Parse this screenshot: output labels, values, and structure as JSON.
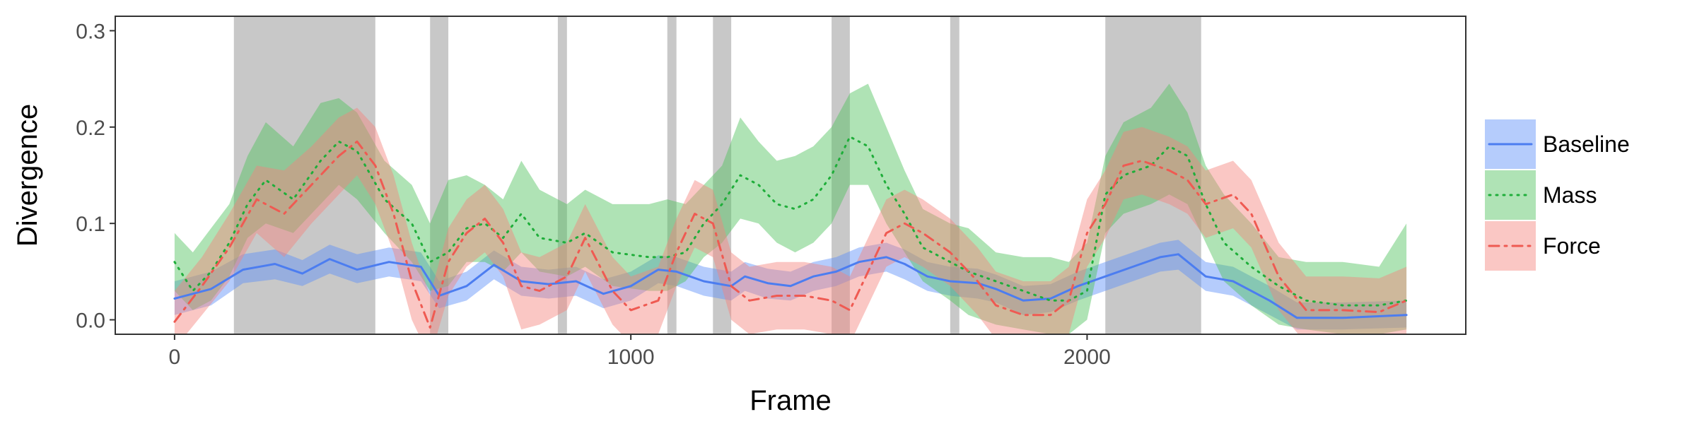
{
  "chart_data": {
    "type": "line",
    "title": "",
    "xlabel": "Frame",
    "ylabel": "Divergence",
    "xlim": [
      -130,
      2830
    ],
    "ylim": [
      -0.015,
      0.315
    ],
    "xticks": [
      0,
      1000,
      2000
    ],
    "xtick_labels": [
      "0",
      "1000",
      "2000"
    ],
    "yticks": [
      0.0,
      0.1,
      0.2,
      0.3
    ],
    "ytick_labels": [
      "0.0",
      "0.1",
      "0.2",
      "0.3"
    ],
    "grid": false,
    "legend_position": "right",
    "shaded_regions": [
      [
        130,
        440
      ],
      [
        560,
        600
      ],
      [
        840,
        860
      ],
      [
        1080,
        1100
      ],
      [
        1180,
        1220
      ],
      [
        1440,
        1480
      ],
      [
        1700,
        1720
      ],
      [
        2040,
        2250
      ]
    ],
    "shade_color": "#c8c8c8",
    "series": [
      {
        "name": "Baseline",
        "color": "#5b8ff9",
        "line_color": "#4c7df0",
        "style": "solid",
        "x": [
          0,
          80,
          150,
          220,
          280,
          340,
          400,
          470,
          540,
          580,
          640,
          700,
          760,
          820,
          880,
          940,
          1000,
          1060,
          1100,
          1160,
          1220,
          1250,
          1300,
          1350,
          1400,
          1450,
          1500,
          1560,
          1600,
          1650,
          1700,
          1760,
          1800,
          1860,
          1920,
          1980,
          2040,
          2100,
          2160,
          2200,
          2260,
          2320,
          2400,
          2460,
          2560,
          2700
        ],
        "y": [
          0.022,
          0.032,
          0.052,
          0.058,
          0.048,
          0.063,
          0.052,
          0.06,
          0.055,
          0.025,
          0.035,
          0.057,
          0.04,
          0.037,
          0.04,
          0.027,
          0.035,
          0.052,
          0.05,
          0.04,
          0.035,
          0.045,
          0.038,
          0.035,
          0.045,
          0.05,
          0.06,
          0.065,
          0.058,
          0.045,
          0.04,
          0.038,
          0.032,
          0.02,
          0.022,
          0.035,
          0.045,
          0.055,
          0.065,
          0.068,
          0.045,
          0.04,
          0.02,
          0.002,
          0.002,
          0.005
        ],
        "lower": [
          0.005,
          0.015,
          0.038,
          0.042,
          0.035,
          0.048,
          0.038,
          0.045,
          0.04,
          0.012,
          0.02,
          0.042,
          0.025,
          0.022,
          0.025,
          0.012,
          0.02,
          0.038,
          0.035,
          0.025,
          0.02,
          0.03,
          0.022,
          0.02,
          0.03,
          0.035,
          0.045,
          0.05,
          0.042,
          0.03,
          0.025,
          0.022,
          0.018,
          0.005,
          0.008,
          0.02,
          0.03,
          0.04,
          0.05,
          0.052,
          0.03,
          0.025,
          0.005,
          -0.01,
          -0.01,
          -0.008
        ],
        "upper": [
          0.04,
          0.05,
          0.068,
          0.073,
          0.062,
          0.078,
          0.068,
          0.075,
          0.07,
          0.04,
          0.05,
          0.072,
          0.055,
          0.052,
          0.055,
          0.042,
          0.05,
          0.067,
          0.065,
          0.055,
          0.05,
          0.06,
          0.053,
          0.05,
          0.06,
          0.065,
          0.075,
          0.08,
          0.073,
          0.06,
          0.055,
          0.053,
          0.047,
          0.035,
          0.037,
          0.05,
          0.06,
          0.07,
          0.08,
          0.083,
          0.06,
          0.055,
          0.035,
          0.018,
          0.018,
          0.02
        ]
      },
      {
        "name": "Mass",
        "color": "#4ec25a",
        "line_color": "#1fae3a",
        "style": "dotted",
        "x": [
          0,
          40,
          80,
          120,
          160,
          200,
          260,
          320,
          360,
          400,
          460,
          520,
          560,
          600,
          640,
          680,
          720,
          760,
          800,
          860,
          900,
          960,
          1040,
          1080,
          1120,
          1160,
          1200,
          1240,
          1280,
          1320,
          1360,
          1400,
          1440,
          1480,
          1520,
          1560,
          1600,
          1640,
          1700,
          1740,
          1800,
          1860,
          1920,
          1960,
          2000,
          2040,
          2080,
          2140,
          2180,
          2220,
          2260,
          2300,
          2360,
          2420,
          2480,
          2560,
          2640,
          2700
        ],
        "y": [
          0.06,
          0.03,
          0.05,
          0.08,
          0.12,
          0.145,
          0.125,
          0.165,
          0.185,
          0.175,
          0.125,
          0.1,
          0.06,
          0.07,
          0.095,
          0.1,
          0.085,
          0.11,
          0.085,
          0.08,
          0.09,
          0.07,
          0.065,
          0.065,
          0.07,
          0.1,
          0.12,
          0.15,
          0.14,
          0.12,
          0.115,
          0.125,
          0.15,
          0.19,
          0.18,
          0.14,
          0.11,
          0.075,
          0.06,
          0.05,
          0.04,
          0.03,
          0.02,
          0.02,
          0.03,
          0.13,
          0.15,
          0.16,
          0.18,
          0.17,
          0.12,
          0.08,
          0.055,
          0.035,
          0.02,
          0.015,
          0.015,
          0.02
        ],
        "lower": [
          0.03,
          0.01,
          0.02,
          0.045,
          0.085,
          0.1,
          0.09,
          0.12,
          0.14,
          0.125,
          0.09,
          0.06,
          0.03,
          0.035,
          0.06,
          0.06,
          0.05,
          0.07,
          0.05,
          0.045,
          0.055,
          0.035,
          0.03,
          0.03,
          0.04,
          0.065,
          0.08,
          0.105,
          0.1,
          0.08,
          0.07,
          0.08,
          0.1,
          0.14,
          0.14,
          0.1,
          0.07,
          0.04,
          0.02,
          0.005,
          -0.005,
          -0.01,
          -0.015,
          -0.015,
          0.0,
          0.09,
          0.11,
          0.12,
          0.13,
          0.12,
          0.08,
          0.04,
          0.015,
          -0.005,
          -0.01,
          -0.015,
          -0.015,
          -0.01
        ],
        "upper": [
          0.09,
          0.07,
          0.095,
          0.12,
          0.17,
          0.205,
          0.18,
          0.225,
          0.23,
          0.215,
          0.165,
          0.14,
          0.1,
          0.145,
          0.15,
          0.14,
          0.125,
          0.165,
          0.135,
          0.12,
          0.135,
          0.12,
          0.12,
          0.125,
          0.12,
          0.14,
          0.16,
          0.21,
          0.185,
          0.165,
          0.17,
          0.18,
          0.2,
          0.235,
          0.245,
          0.2,
          0.155,
          0.115,
          0.1,
          0.095,
          0.07,
          0.065,
          0.065,
          0.06,
          0.08,
          0.17,
          0.205,
          0.22,
          0.245,
          0.215,
          0.16,
          0.13,
          0.1,
          0.065,
          0.06,
          0.06,
          0.055,
          0.1
        ]
      },
      {
        "name": "Force",
        "color": "#f4837d",
        "line_color": "#ef5a52",
        "style": "dashdot",
        "x": [
          0,
          60,
          120,
          180,
          240,
          300,
          360,
          400,
          440,
          480,
          520,
          560,
          600,
          640,
          680,
          720,
          760,
          800,
          860,
          900,
          960,
          1000,
          1060,
          1100,
          1140,
          1180,
          1220,
          1260,
          1320,
          1380,
          1440,
          1480,
          1520,
          1560,
          1600,
          1640,
          1700,
          1760,
          1800,
          1860,
          1920,
          1960,
          2000,
          2040,
          2080,
          2120,
          2180,
          2220,
          2260,
          2320,
          2360,
          2420,
          2480,
          2560,
          2640,
          2700
        ],
        "y": [
          -0.002,
          0.035,
          0.075,
          0.125,
          0.11,
          0.14,
          0.17,
          0.185,
          0.16,
          0.11,
          0.04,
          -0.008,
          0.06,
          0.09,
          0.105,
          0.08,
          0.035,
          0.03,
          0.045,
          0.085,
          0.03,
          0.01,
          0.02,
          0.07,
          0.11,
          0.1,
          0.035,
          0.02,
          0.025,
          0.025,
          0.02,
          0.01,
          0.05,
          0.09,
          0.1,
          0.09,
          0.07,
          0.04,
          0.015,
          0.005,
          0.005,
          0.02,
          0.09,
          0.12,
          0.16,
          0.165,
          0.155,
          0.145,
          0.12,
          0.13,
          0.11,
          0.045,
          0.01,
          0.01,
          0.008,
          0.02
        ],
        "lower": [
          -0.03,
          0.005,
          0.04,
          0.09,
          0.065,
          0.1,
          0.13,
          0.15,
          0.12,
          0.07,
          0.0,
          -0.04,
          0.025,
          0.055,
          0.07,
          0.045,
          -0.01,
          -0.005,
          0.01,
          0.05,
          -0.005,
          -0.025,
          -0.015,
          0.035,
          0.075,
          0.065,
          0.0,
          -0.015,
          -0.01,
          -0.01,
          -0.015,
          -0.025,
          0.015,
          0.055,
          0.065,
          0.055,
          0.035,
          0.005,
          -0.02,
          -0.03,
          -0.03,
          -0.015,
          0.055,
          0.085,
          0.125,
          0.13,
          0.12,
          0.11,
          0.085,
          0.095,
          0.075,
          0.01,
          -0.025,
          -0.025,
          -0.027,
          -0.015
        ],
        "upper": [
          0.03,
          0.065,
          0.11,
          0.16,
          0.155,
          0.18,
          0.21,
          0.22,
          0.2,
          0.15,
          0.08,
          0.025,
          0.095,
          0.125,
          0.14,
          0.115,
          0.07,
          0.065,
          0.08,
          0.12,
          0.065,
          0.045,
          0.055,
          0.105,
          0.145,
          0.135,
          0.07,
          0.055,
          0.06,
          0.06,
          0.055,
          0.045,
          0.085,
          0.125,
          0.135,
          0.125,
          0.105,
          0.075,
          0.05,
          0.04,
          0.04,
          0.055,
          0.125,
          0.155,
          0.195,
          0.2,
          0.19,
          0.18,
          0.155,
          0.165,
          0.145,
          0.08,
          0.045,
          0.045,
          0.043,
          0.055
        ]
      }
    ]
  }
}
